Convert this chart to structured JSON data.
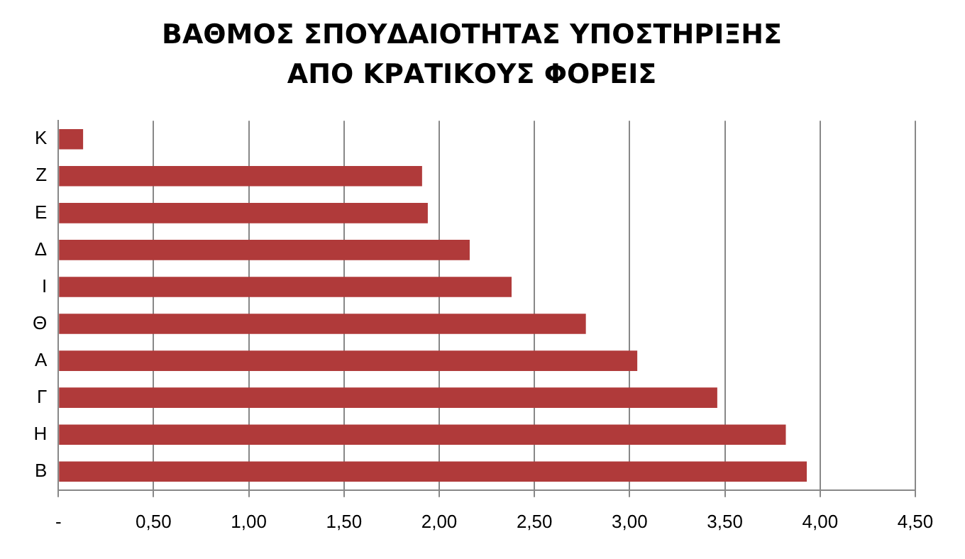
{
  "chart_data": {
    "type": "bar",
    "orientation": "horizontal",
    "title": "ΒΑΘΜΟΣ ΣΠΟΥΔΑΙΟΤΗΤΑΣ ΥΠΟΣΤΗΡΙΞΗΣ ΑΠΟ ΚΡΑΤΙΚΟΥΣ ΦΟΡΕΙΣ",
    "categories": [
      "Κ",
      "Ζ",
      "Ε",
      "Δ",
      "Ι",
      "Θ",
      "Α",
      "Γ",
      "Η",
      "Β"
    ],
    "values": [
      0.13,
      1.91,
      1.94,
      2.16,
      2.38,
      2.77,
      3.04,
      3.46,
      3.82,
      3.93
    ],
    "color": "#b03a3a",
    "xlim": [
      0,
      4.5
    ],
    "xticks": [
      {
        "value": 0,
        "label": "-"
      },
      {
        "value": 0.5,
        "label": "0,50"
      },
      {
        "value": 1,
        "label": "1,00"
      },
      {
        "value": 1.5,
        "label": "1,50"
      },
      {
        "value": 2,
        "label": "2,00"
      },
      {
        "value": 2.5,
        "label": "2,50"
      },
      {
        "value": 3,
        "label": "3,00"
      },
      {
        "value": 3.5,
        "label": "3,50"
      },
      {
        "value": 4,
        "label": "4,00"
      },
      {
        "value": 4.5,
        "label": "4,50"
      }
    ],
    "grid": "x",
    "legend": false
  }
}
